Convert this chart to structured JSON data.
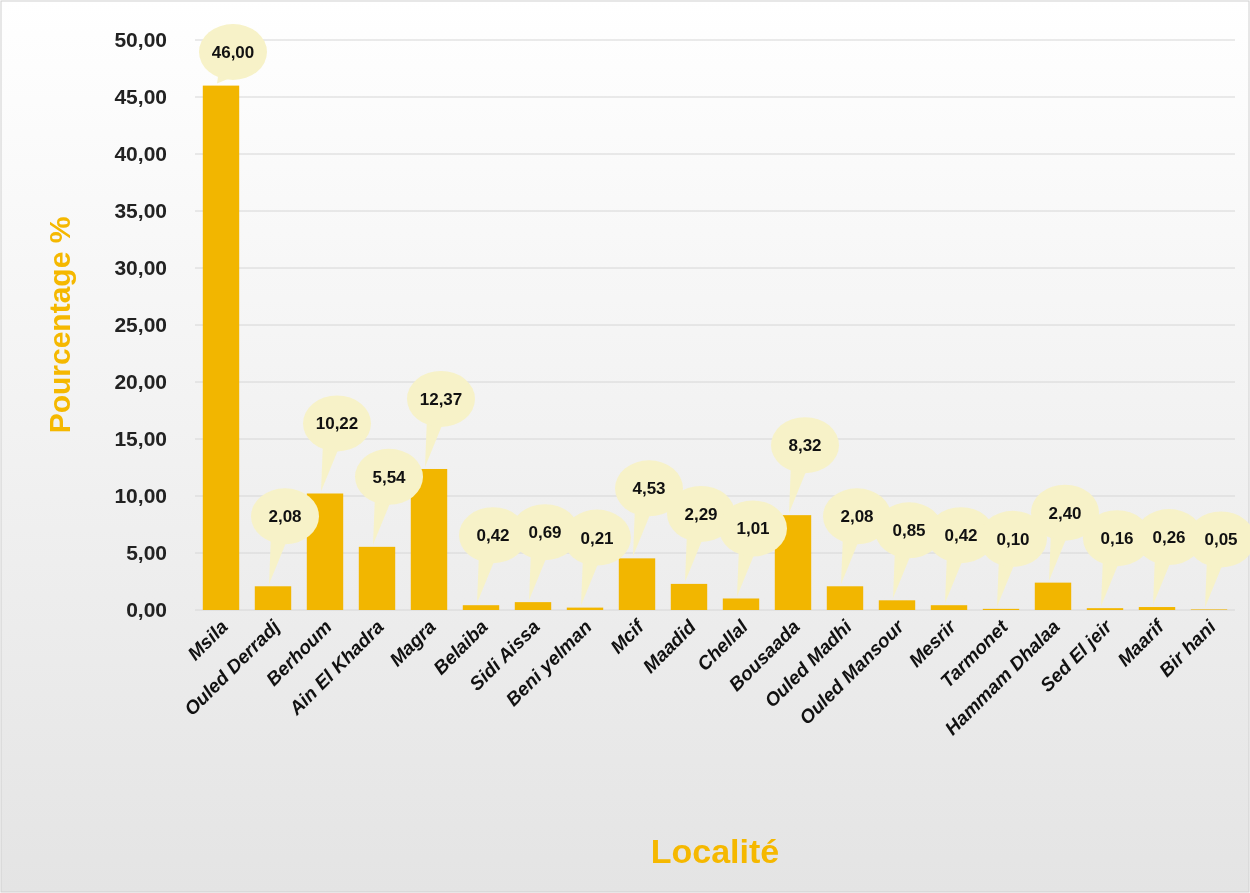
{
  "chart_data": {
    "type": "bar",
    "xlabel": "Localité",
    "ylabel": "Pourcentage %",
    "categories": [
      "Msila",
      "Ouled Derradj",
      "Berhoum",
      "Ain El Khadra",
      "Magra",
      "Belaiba",
      "Sidi Aissa",
      "Beni yelman",
      "Mcif",
      "Maadid",
      "Chellal",
      "Bousaada",
      "Ouled Madhi",
      "Ouled Mansour",
      "Mesrir",
      "Tarmonet",
      "Hammam Dhalaa",
      "Sed El jeir",
      "Maarif",
      "Bir hani"
    ],
    "values": [
      46.0,
      2.08,
      10.22,
      5.54,
      12.37,
      0.42,
      0.69,
      0.21,
      4.53,
      2.29,
      1.01,
      8.32,
      2.08,
      0.85,
      0.42,
      0.1,
      2.4,
      0.16,
      0.26,
      0.05
    ],
    "value_labels": [
      "46,00",
      "2,08",
      "10,22",
      "5,54",
      "12,37",
      "0,42",
      "0,69",
      "0,21",
      "4,53",
      "2,29",
      "1,01",
      "8,32",
      "2,08",
      "0,85",
      "0,42",
      "0,10",
      "2,40",
      "0,16",
      "0,26",
      "0,05"
    ],
    "color": "#f2b600",
    "ylim": [
      0,
      50
    ],
    "yticks": [
      {
        "value": 0,
        "label": "0,00"
      },
      {
        "value": 5,
        "label": "5,00"
      },
      {
        "value": 10,
        "label": "10,00"
      },
      {
        "value": 15,
        "label": "15,00"
      },
      {
        "value": 20,
        "label": "20,00"
      },
      {
        "value": 25,
        "label": "25,00"
      },
      {
        "value": 30,
        "label": "30,00"
      },
      {
        "value": 35,
        "label": "35,00"
      },
      {
        "value": 40,
        "label": "40,00"
      },
      {
        "value": 45,
        "label": "45,00"
      },
      {
        "value": 50,
        "label": "50,00"
      }
    ],
    "grid": "y"
  }
}
